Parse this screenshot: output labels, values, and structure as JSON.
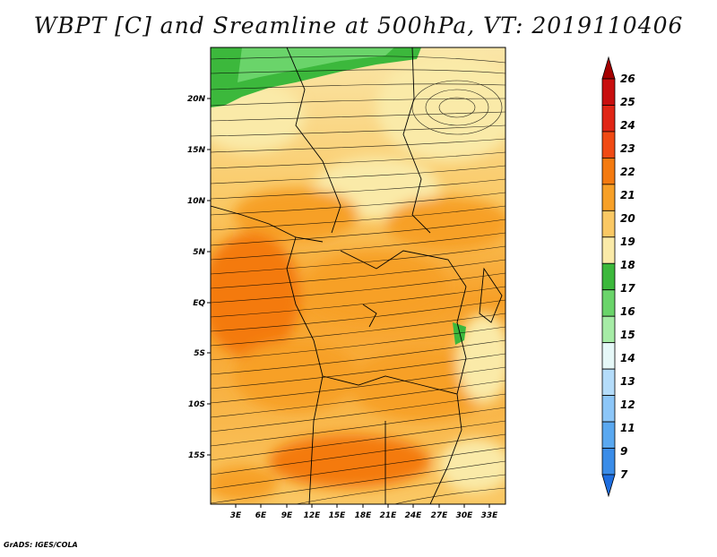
{
  "title": "WBPT [C] and Sreamline at 500hPa, VT: 2019110406",
  "credit": "GrADS: IGES/COLA",
  "map": {
    "lat_ticks": [
      "20N",
      "15N",
      "10N",
      "5N",
      "EQ",
      "5S",
      "10S",
      "15S"
    ],
    "lon_ticks": [
      "3E",
      "6E",
      "9E",
      "12E",
      "15E",
      "18E",
      "21E",
      "24E",
      "27E",
      "30E",
      "33E"
    ]
  },
  "colorbar": {
    "labels": [
      "26",
      "25",
      "24",
      "23",
      "22",
      "21",
      "20",
      "19",
      "18",
      "17",
      "16",
      "15",
      "14",
      "13",
      "12",
      "11",
      "9",
      "7"
    ],
    "colors": [
      "#a50000",
      "#c80f0f",
      "#e02616",
      "#f04a14",
      "#f47a10",
      "#f7a028",
      "#fac864",
      "#faeaa8",
      "#3cb83c",
      "#6ad46a",
      "#a6eca6",
      "#e6f8f8",
      "#b4dcfa",
      "#8cc6f8",
      "#5aa8f0",
      "#3a8ce8",
      "#1e6ee0"
    ]
  }
}
